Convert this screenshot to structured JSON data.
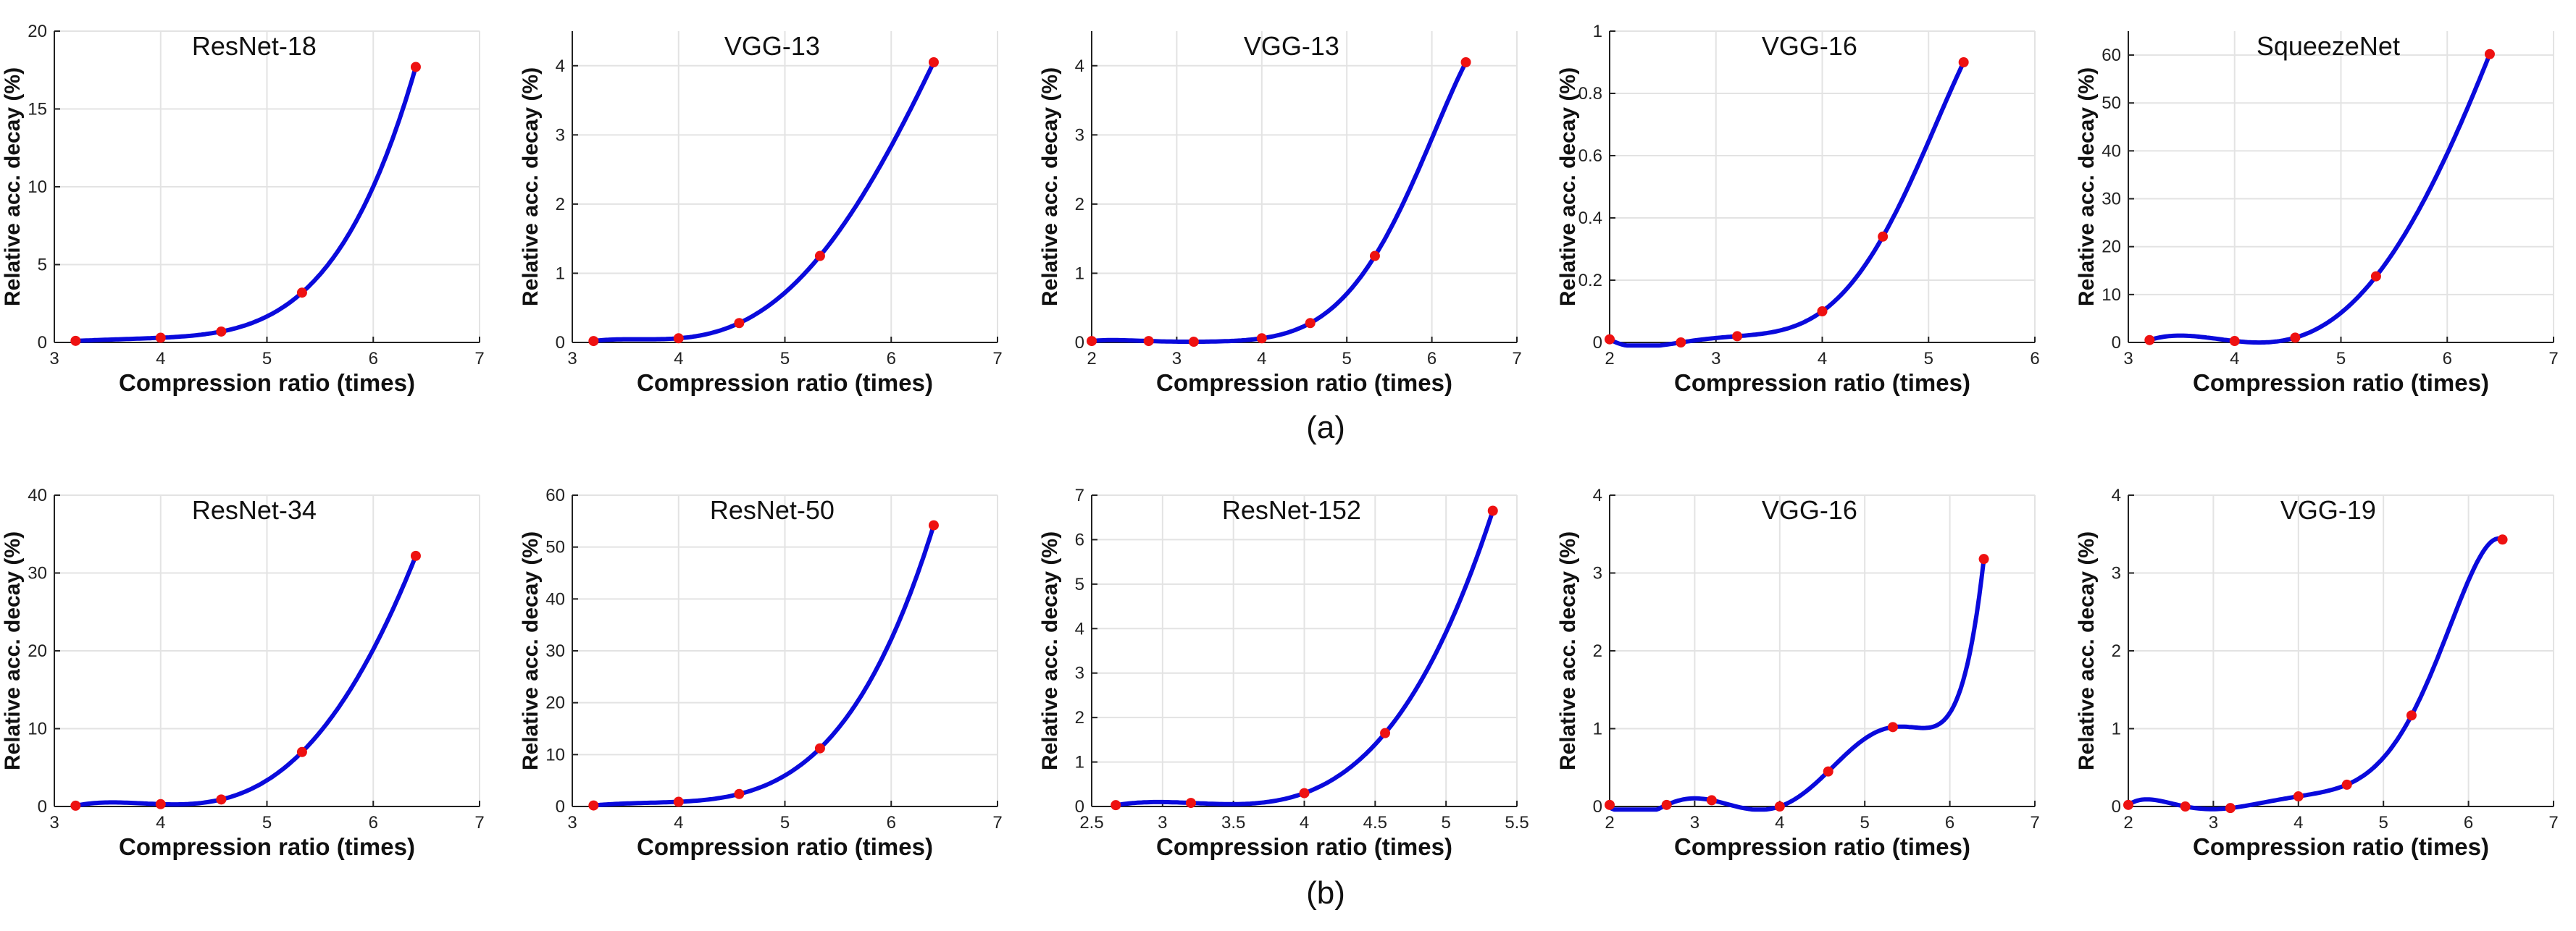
{
  "captions": {
    "row_a": "(a)",
    "row_b": "(b)"
  },
  "colors": {
    "curve": "#0a0adc",
    "points": "#ee1111",
    "grid": "#e3e3e3",
    "axis": "#222222"
  },
  "chart_data": [
    {
      "type": "line",
      "title": "ResNet-18",
      "xlabel": "Compression ratio (times)",
      "ylabel": "Relative acc. decay (%)",
      "xlim": [
        3,
        7
      ],
      "ylim": [
        0,
        20
      ],
      "xticks": [
        3,
        4,
        5,
        6,
        7
      ],
      "yticks": [
        0,
        5,
        10,
        15,
        20
      ],
      "points": [
        [
          3.2,
          0.1
        ],
        [
          4.0,
          0.3
        ],
        [
          4.57,
          0.7
        ],
        [
          5.33,
          3.2
        ],
        [
          6.4,
          17.7
        ]
      ],
      "grid": true
    },
    {
      "type": "line",
      "title": "VGG-13",
      "xlabel": "Compression ratio (times)",
      "ylabel": "Relative acc. decay (%)",
      "xlim": [
        3,
        7
      ],
      "ylim": [
        0,
        4.5
      ],
      "xticks": [
        3,
        4,
        5,
        6,
        7
      ],
      "yticks": [
        0,
        1,
        2,
        3,
        4
      ],
      "points": [
        [
          3.2,
          0.02
        ],
        [
          4.0,
          0.06
        ],
        [
          4.57,
          0.28
        ],
        [
          5.33,
          1.25
        ],
        [
          6.4,
          4.05
        ]
      ],
      "grid": true
    },
    {
      "type": "line",
      "title": "VGG-13",
      "xlabel": "Compression ratio (times)",
      "ylabel": "Relative acc. decay (%)",
      "xlim": [
        2,
        7
      ],
      "ylim": [
        0,
        4.5
      ],
      "xticks": [
        2,
        3,
        4,
        5,
        6,
        7
      ],
      "yticks": [
        0,
        1,
        2,
        3,
        4
      ],
      "points": [
        [
          2.0,
          0.02
        ],
        [
          2.67,
          0.02
        ],
        [
          3.2,
          0.01
        ],
        [
          4.0,
          0.06
        ],
        [
          4.57,
          0.28
        ],
        [
          5.33,
          1.25
        ],
        [
          6.4,
          4.05
        ]
      ],
      "grid": true
    },
    {
      "type": "line",
      "title": "VGG-16",
      "xlabel": "Compression ratio (times)",
      "ylabel": "Relative acc. decay (%)",
      "xlim": [
        2,
        6
      ],
      "ylim": [
        0,
        1
      ],
      "xticks": [
        2,
        3,
        4,
        5,
        6
      ],
      "yticks": [
        0,
        0.2,
        0.4,
        0.6,
        0.8,
        1
      ],
      "points": [
        [
          2.0,
          0.01
        ],
        [
          2.67,
          0.0
        ],
        [
          3.2,
          0.02
        ],
        [
          4.0,
          0.1
        ],
        [
          4.57,
          0.34
        ],
        [
          5.33,
          0.9
        ]
      ],
      "grid": true
    },
    {
      "type": "line",
      "title": "SqueezeNet",
      "xlabel": "Compression ratio (times)",
      "ylabel": "Relative acc. decay (%)",
      "xlim": [
        3,
        7
      ],
      "ylim": [
        0,
        65
      ],
      "xticks": [
        3,
        4,
        5,
        6,
        7
      ],
      "yticks": [
        0,
        10,
        20,
        30,
        40,
        50,
        60
      ],
      "points": [
        [
          3.2,
          0.5
        ],
        [
          4.0,
          0.3
        ],
        [
          4.57,
          1.0
        ],
        [
          5.33,
          13.8
        ],
        [
          6.4,
          60.2
        ]
      ],
      "grid": true
    },
    {
      "type": "line",
      "title": "ResNet-34",
      "xlabel": "Compression ratio (times)",
      "ylabel": "Relative acc. decay (%)",
      "xlim": [
        3,
        7
      ],
      "ylim": [
        0,
        40
      ],
      "xticks": [
        3,
        4,
        5,
        6,
        7
      ],
      "yticks": [
        0,
        10,
        20,
        30,
        40
      ],
      "points": [
        [
          3.2,
          0.1
        ],
        [
          4.0,
          0.3
        ],
        [
          4.57,
          0.9
        ],
        [
          5.33,
          7.0
        ],
        [
          6.4,
          32.2
        ]
      ],
      "grid": true
    },
    {
      "type": "line",
      "title": "ResNet-50",
      "xlabel": "Compression ratio (times)",
      "ylabel": "Relative acc. decay (%)",
      "xlim": [
        3,
        7
      ],
      "ylim": [
        0,
        60
      ],
      "xticks": [
        3,
        4,
        5,
        6,
        7
      ],
      "yticks": [
        0,
        10,
        20,
        30,
        40,
        50,
        60
      ],
      "points": [
        [
          3.2,
          0.2
        ],
        [
          4.0,
          0.9
        ],
        [
          4.57,
          2.4
        ],
        [
          5.33,
          11.2
        ],
        [
          6.4,
          54.2
        ]
      ],
      "grid": true
    },
    {
      "type": "line",
      "title": "ResNet-152",
      "xlabel": "Compression ratio (times)",
      "ylabel": "Relative acc. decay (%)",
      "xlim": [
        2.5,
        5.5
      ],
      "ylim": [
        0,
        7
      ],
      "xticks": [
        2.5,
        3,
        3.5,
        4,
        4.5,
        5,
        5.5
      ],
      "yticks": [
        0,
        1,
        2,
        3,
        4,
        5,
        6,
        7
      ],
      "points": [
        [
          2.67,
          0.03
        ],
        [
          3.2,
          0.08
        ],
        [
          4.0,
          0.3
        ],
        [
          4.57,
          1.65
        ],
        [
          5.33,
          6.65
        ]
      ],
      "grid": true
    },
    {
      "type": "line",
      "title": "VGG-16",
      "xlabel": "Compression ratio (times)",
      "ylabel": "Relative acc. decay (%)",
      "xlim": [
        2,
        7
      ],
      "ylim": [
        0,
        4
      ],
      "xticks": [
        2,
        3,
        4,
        5,
        6,
        7
      ],
      "yticks": [
        0,
        1,
        2,
        3,
        4
      ],
      "points": [
        [
          2.0,
          0.02
        ],
        [
          2.67,
          0.02
        ],
        [
          3.2,
          0.08
        ],
        [
          4.0,
          0.0
        ],
        [
          4.57,
          0.45
        ],
        [
          5.33,
          1.02
        ],
        [
          6.4,
          3.18
        ]
      ],
      "grid": true
    },
    {
      "type": "line",
      "title": "VGG-19",
      "xlabel": "Compression ratio (times)",
      "ylabel": "Relative acc. decay (%)",
      "xlim": [
        2,
        7
      ],
      "ylim": [
        0,
        4
      ],
      "xticks": [
        2,
        3,
        4,
        5,
        6,
        7
      ],
      "yticks": [
        0,
        1,
        2,
        3,
        4
      ],
      "points": [
        [
          2.0,
          0.02
        ],
        [
          2.67,
          0.0
        ],
        [
          3.2,
          -0.02
        ],
        [
          4.0,
          0.13
        ],
        [
          4.57,
          0.28
        ],
        [
          5.33,
          1.17
        ],
        [
          6.4,
          3.43
        ]
      ],
      "grid": true
    }
  ]
}
